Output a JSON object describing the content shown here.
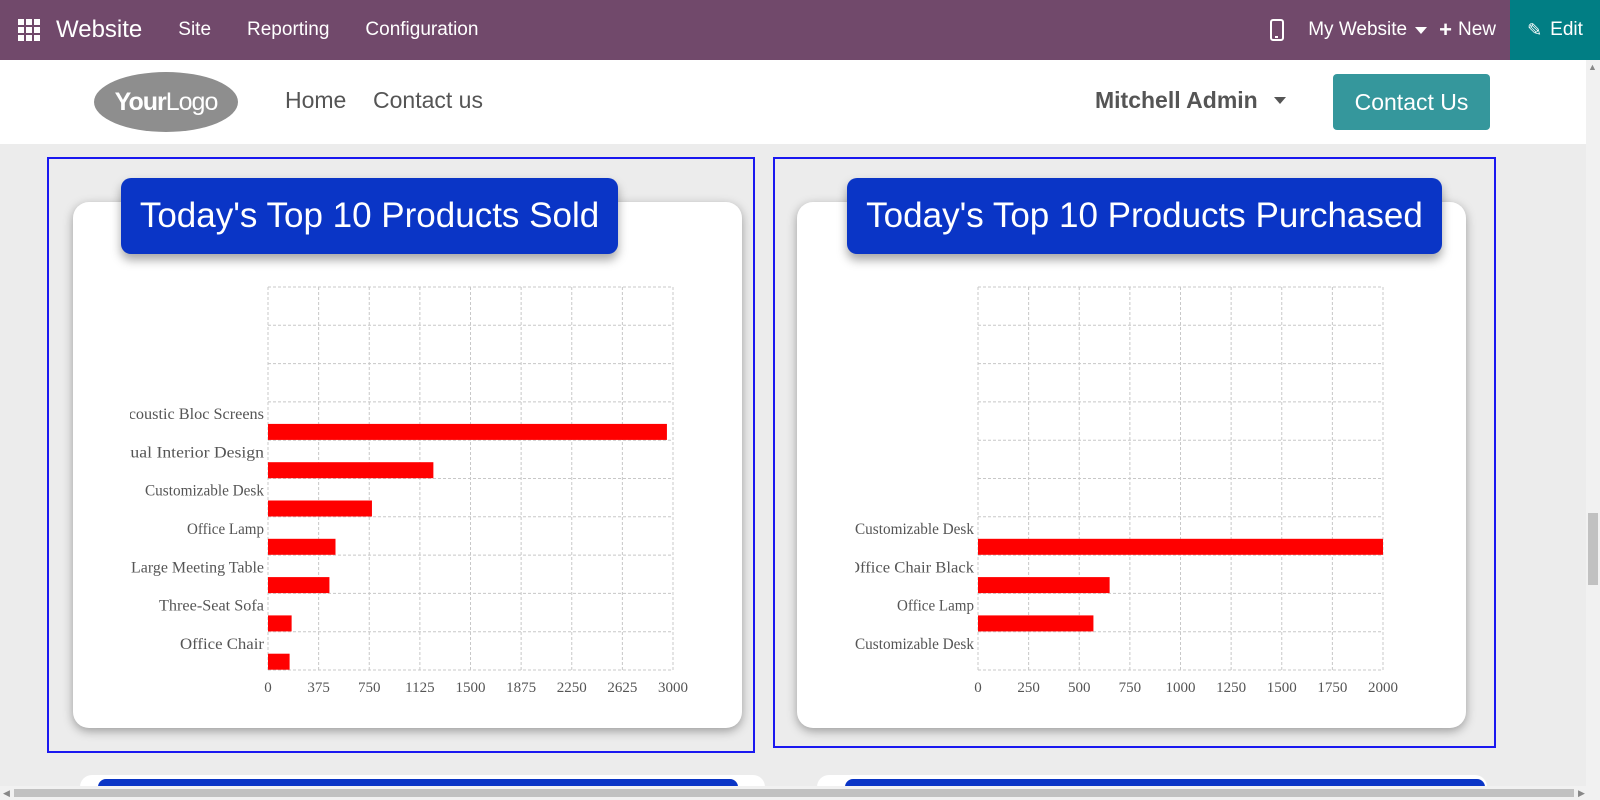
{
  "topbar": {
    "app_name": "Website",
    "menu": [
      "Site",
      "Reporting",
      "Configuration"
    ],
    "website_selector": "My Website",
    "new_label": "New",
    "edit_label": "Edit",
    "bg_color": "#71496b",
    "edit_color": "#017e84"
  },
  "site": {
    "logo_bold": "Your",
    "logo_rest": "Logo",
    "nav": [
      "Home",
      "Contact us"
    ],
    "user": "Mitchell Admin",
    "contact_button": "Contact Us"
  },
  "panels": [
    {
      "title": "Today's Top 10 Products Sold"
    },
    {
      "title": "Today's Top 10 Products Purchased"
    }
  ],
  "chart_data": [
    {
      "type": "bar",
      "orientation": "horizontal",
      "title": "Today's Top 10 Products Sold",
      "categories": [
        "Acoustic Bloc Screens",
        "Virtual Interior Design",
        "Customizable Desk",
        "Office Lamp",
        "Large Meeting Table",
        "Three-Seat Sofa",
        "Office Chair"
      ],
      "values": [
        2955,
        1225,
        770,
        500,
        455,
        175,
        160
      ],
      "xlim": [
        0,
        3000
      ],
      "xticks": [
        "0",
        "375",
        "750",
        "1125",
        "1500",
        "1875",
        "2250",
        "2625",
        "3000"
      ],
      "slots": 10,
      "grid": true,
      "bar_color": "#ff0000"
    },
    {
      "type": "bar",
      "orientation": "horizontal",
      "title": "Today's Top 10 Products Purchased",
      "categories": [
        "Customizable Desk",
        "Office Chair Black",
        "Office Lamp",
        "Customizable Desk"
      ],
      "values": [
        2000,
        650,
        570,
        0
      ],
      "xlim": [
        0,
        2000
      ],
      "xticks": [
        "0",
        "250",
        "500",
        "750",
        "1000",
        "1250",
        "1500",
        "1750",
        "2000"
      ],
      "slots": 10,
      "grid": true,
      "bar_color": "#ff0000"
    }
  ]
}
